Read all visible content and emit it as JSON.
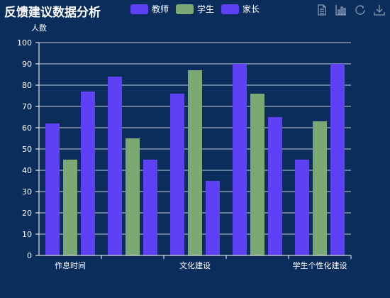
{
  "chart_data": {
    "type": "bar",
    "title": "反馈建议数据分析",
    "ylabel": "人数",
    "xlabel": "",
    "categories": [
      "作息时间",
      "",
      "文化建设",
      "",
      "学生个性化建设"
    ],
    "series": [
      {
        "name": "教师",
        "color": "#5f40f5",
        "values": [
          62,
          84,
          76,
          90,
          45
        ]
      },
      {
        "name": "学生",
        "color": "#7ba874",
        "values": [
          45,
          55,
          87,
          76,
          63
        ]
      },
      {
        "name": "家长",
        "color": "#5f40f5",
        "values": [
          77,
          45,
          35,
          65,
          90
        ]
      }
    ],
    "ylim": [
      0,
      100
    ],
    "yticks": [
      0,
      10,
      20,
      30,
      40,
      50,
      60,
      70,
      80,
      90,
      100
    ],
    "grid": true,
    "legend_position": "top"
  },
  "toolbox": {
    "icons": [
      "data-view-icon",
      "bar-chart-icon",
      "restore-icon",
      "download-icon"
    ],
    "icon_color": "#8a9bb3"
  }
}
